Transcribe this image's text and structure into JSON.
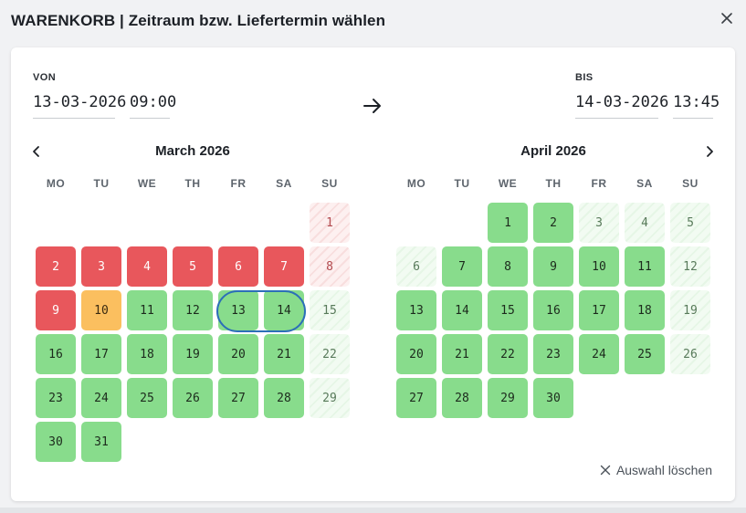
{
  "dialog": {
    "title": "WARENKORB | Zeitraum bzw. Liefertermin wählen",
    "close_icon": "close-icon"
  },
  "from": {
    "label": "VON",
    "date": "13-03-2026",
    "time": "09:00"
  },
  "to": {
    "label": "BIS",
    "date": "14-03-2026",
    "time": "13:45"
  },
  "arrow_icon": "arrow-right-icon",
  "weekdays": [
    "MO",
    "TU",
    "WE",
    "TH",
    "FR",
    "SA",
    "SU"
  ],
  "months": [
    {
      "title": "March 2026",
      "start_weekday": 6,
      "days": [
        {
          "d": "1",
          "s": "we-booked"
        },
        {
          "d": "2",
          "s": "booked"
        },
        {
          "d": "3",
          "s": "booked"
        },
        {
          "d": "4",
          "s": "booked"
        },
        {
          "d": "5",
          "s": "booked"
        },
        {
          "d": "6",
          "s": "booked"
        },
        {
          "d": "7",
          "s": "booked"
        },
        {
          "d": "8",
          "s": "we-booked"
        },
        {
          "d": "9",
          "s": "booked"
        },
        {
          "d": "10",
          "s": "partial"
        },
        {
          "d": "11",
          "s": "avail"
        },
        {
          "d": "12",
          "s": "avail"
        },
        {
          "d": "13",
          "s": "avail"
        },
        {
          "d": "14",
          "s": "avail"
        },
        {
          "d": "15",
          "s": "we-avail"
        },
        {
          "d": "16",
          "s": "avail"
        },
        {
          "d": "17",
          "s": "avail"
        },
        {
          "d": "18",
          "s": "avail"
        },
        {
          "d": "19",
          "s": "avail"
        },
        {
          "d": "20",
          "s": "avail"
        },
        {
          "d": "21",
          "s": "avail"
        },
        {
          "d": "22",
          "s": "we-avail"
        },
        {
          "d": "23",
          "s": "avail"
        },
        {
          "d": "24",
          "s": "avail"
        },
        {
          "d": "25",
          "s": "avail"
        },
        {
          "d": "26",
          "s": "avail"
        },
        {
          "d": "27",
          "s": "avail"
        },
        {
          "d": "28",
          "s": "avail"
        },
        {
          "d": "29",
          "s": "we-avail"
        },
        {
          "d": "30",
          "s": "avail"
        },
        {
          "d": "31",
          "s": "avail"
        }
      ],
      "selected": [
        "13",
        "14"
      ]
    },
    {
      "title": "April 2026",
      "start_weekday": 2,
      "days": [
        {
          "d": "1",
          "s": "avail"
        },
        {
          "d": "2",
          "s": "avail"
        },
        {
          "d": "3",
          "s": "we-avail"
        },
        {
          "d": "4",
          "s": "we-avail"
        },
        {
          "d": "5",
          "s": "we-avail"
        },
        {
          "d": "6",
          "s": "we-avail"
        },
        {
          "d": "7",
          "s": "avail"
        },
        {
          "d": "8",
          "s": "avail"
        },
        {
          "d": "9",
          "s": "avail"
        },
        {
          "d": "10",
          "s": "avail"
        },
        {
          "d": "11",
          "s": "avail"
        },
        {
          "d": "12",
          "s": "we-avail"
        },
        {
          "d": "13",
          "s": "avail"
        },
        {
          "d": "14",
          "s": "avail"
        },
        {
          "d": "15",
          "s": "avail"
        },
        {
          "d": "16",
          "s": "avail"
        },
        {
          "d": "17",
          "s": "avail"
        },
        {
          "d": "18",
          "s": "avail"
        },
        {
          "d": "19",
          "s": "we-avail"
        },
        {
          "d": "20",
          "s": "avail"
        },
        {
          "d": "21",
          "s": "avail"
        },
        {
          "d": "22",
          "s": "avail"
        },
        {
          "d": "23",
          "s": "avail"
        },
        {
          "d": "24",
          "s": "avail"
        },
        {
          "d": "25",
          "s": "avail"
        },
        {
          "d": "26",
          "s": "we-avail"
        },
        {
          "d": "27",
          "s": "avail"
        },
        {
          "d": "28",
          "s": "avail"
        },
        {
          "d": "29",
          "s": "avail"
        },
        {
          "d": "30",
          "s": "avail"
        }
      ],
      "selected": []
    }
  ],
  "nav": {
    "prev_icon": "chevron-left-icon",
    "next_icon": "chevron-right-icon"
  },
  "clear": {
    "label": "Auswahl löschen",
    "icon": "close-icon"
  },
  "colors": {
    "available": "#88dc8c",
    "booked": "#e8575c",
    "partial": "#fbbf5f",
    "selection_ring": "#2c6fb8"
  }
}
